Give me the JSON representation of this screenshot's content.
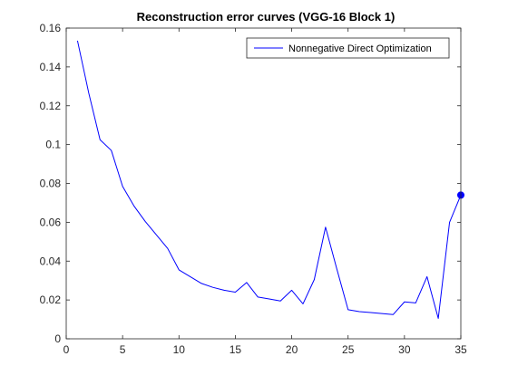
{
  "chart_data": {
    "type": "line",
    "title": "Reconstruction error curves (VGG-16 Block 1)",
    "xlabel": "",
    "ylabel": "",
    "xlim": [
      0,
      35
    ],
    "ylim": [
      0,
      0.16
    ],
    "xticks": [
      0,
      5,
      10,
      15,
      20,
      25,
      30,
      35
    ],
    "yticks": [
      0,
      0.02,
      0.04,
      0.06,
      0.08,
      0.1,
      0.12,
      0.14,
      0.16
    ],
    "xtick_labels": [
      "0",
      "5",
      "10",
      "15",
      "20",
      "25",
      "30",
      "35"
    ],
    "ytick_labels": [
      "0",
      "0.02",
      "0.04",
      "0.06",
      "0.08",
      "0.1",
      "0.12",
      "0.14",
      "0.16"
    ],
    "grid": false,
    "legend_position": "top-right",
    "series": [
      {
        "name": "Nonnegative Direct Optimization",
        "color": "#0000ff",
        "x": [
          1,
          2,
          3,
          4,
          5,
          6,
          7,
          8,
          9,
          10,
          11,
          12,
          13,
          14,
          15,
          16,
          17,
          18,
          19,
          20,
          21,
          22,
          23,
          24,
          25,
          26,
          27,
          28,
          29,
          30,
          31,
          32,
          33,
          34,
          35
        ],
        "y": [
          0.1535,
          0.1265,
          0.1025,
          0.097,
          0.0785,
          0.0685,
          0.0605,
          0.0535,
          0.0465,
          0.0355,
          0.032,
          0.0285,
          0.0265,
          0.025,
          0.024,
          0.029,
          0.0215,
          0.0205,
          0.0195,
          0.025,
          0.018,
          0.0305,
          0.0575,
          0.036,
          0.015,
          0.014,
          0.0135,
          0.013,
          0.0125,
          0.019,
          0.0185,
          0.032,
          0.0105,
          0.06,
          0.074
        ]
      }
    ],
    "markers": [
      {
        "series": "Nonnegative Direct Optimization",
        "x": 35,
        "y": 0.074
      }
    ]
  }
}
